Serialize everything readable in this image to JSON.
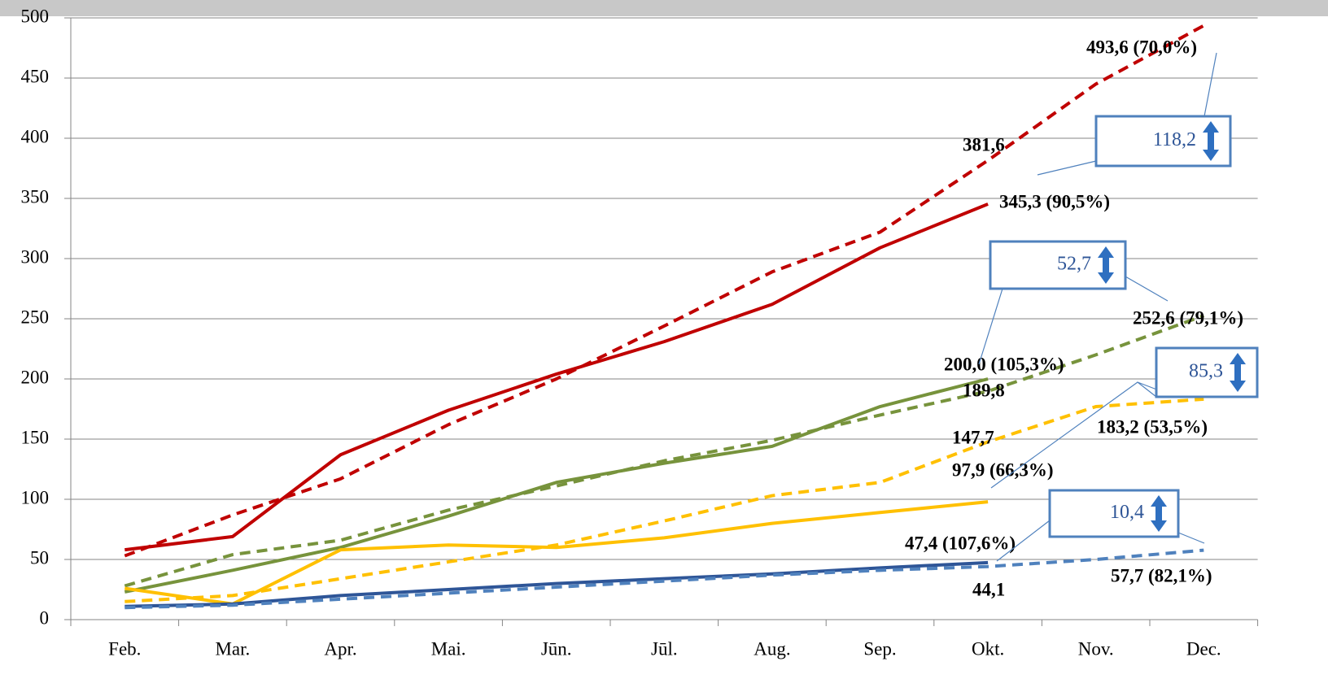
{
  "chart_data": {
    "type": "line",
    "categories": [
      "Feb.",
      "Mar.",
      "Apr.",
      "Mai.",
      "Jūn.",
      "Jūl.",
      "Aug.",
      "Sep.",
      "Okt.",
      "Nov.",
      "Dec."
    ],
    "ylim": [
      0,
      500
    ],
    "yticks": [
      0,
      50,
      100,
      150,
      200,
      250,
      300,
      350,
      400,
      450,
      500
    ],
    "grid": true,
    "series": [
      {
        "color": "#c00000",
        "dashed": false,
        "values": [
          58,
          69,
          137,
          174,
          204,
          231,
          262,
          309,
          345.3,
          null,
          null
        ],
        "value_labels": [
          null,
          null,
          null,
          null,
          null,
          null,
          null,
          null,
          "345,3 (90,5%)",
          null,
          null
        ]
      },
      {
        "color": "#c00000",
        "dashed": true,
        "values": [
          53,
          87,
          117,
          162,
          200,
          244,
          289,
          322,
          381.6,
          445,
          493.6
        ],
        "value_labels": [
          null,
          null,
          null,
          null,
          null,
          null,
          null,
          null,
          "381,6",
          null,
          "493,6 (70,0%)"
        ]
      },
      {
        "color": "#77933c",
        "dashed": false,
        "values": [
          23,
          41,
          60,
          86,
          114,
          130,
          144,
          177,
          200.0,
          null,
          null
        ],
        "value_labels": [
          null,
          null,
          null,
          null,
          null,
          null,
          null,
          null,
          "200,0 (105,3%)",
          null,
          null
        ]
      },
      {
        "color": "#77933c",
        "dashed": true,
        "values": [
          28,
          54,
          66,
          91,
          111,
          132,
          149,
          170,
          189.8,
          220,
          252.6
        ],
        "value_labels": [
          null,
          null,
          null,
          null,
          null,
          null,
          null,
          null,
          "189,8",
          null,
          "252,6 (79,1%)"
        ]
      },
      {
        "color": "#ffc000",
        "dashed": false,
        "values": [
          26,
          13,
          58,
          62,
          60,
          68,
          80,
          89,
          97.9,
          null,
          null
        ],
        "value_labels": [
          null,
          null,
          null,
          null,
          null,
          null,
          null,
          null,
          "97,9 (66,3%)",
          null,
          null
        ]
      },
      {
        "color": "#ffc000",
        "dashed": true,
        "values": [
          15,
          20,
          34,
          48,
          62,
          82,
          103,
          114,
          147.7,
          177,
          183.2
        ],
        "value_labels": [
          null,
          null,
          null,
          null,
          null,
          null,
          null,
          null,
          "147,7",
          null,
          "183,2 (53,5%)"
        ]
      },
      {
        "color": "#2e5597",
        "dashed": false,
        "values": [
          11,
          13,
          20,
          25,
          30,
          34,
          38,
          43,
          47.4,
          null,
          null
        ],
        "value_labels": [
          null,
          null,
          null,
          null,
          null,
          null,
          null,
          null,
          "47,4 (107,6%)",
          null,
          null
        ]
      },
      {
        "color": "#4f81bd",
        "dashed": true,
        "values": [
          10,
          12,
          17,
          22,
          27,
          32,
          37,
          41,
          44.1,
          50,
          57.7
        ],
        "value_labels": [
          null,
          null,
          null,
          null,
          null,
          null,
          null,
          null,
          "44,1",
          null,
          "57,7 (82,1%)"
        ]
      }
    ],
    "annotations": [
      "118,2",
      "52,7",
      "85,3",
      "10,4"
    ]
  }
}
